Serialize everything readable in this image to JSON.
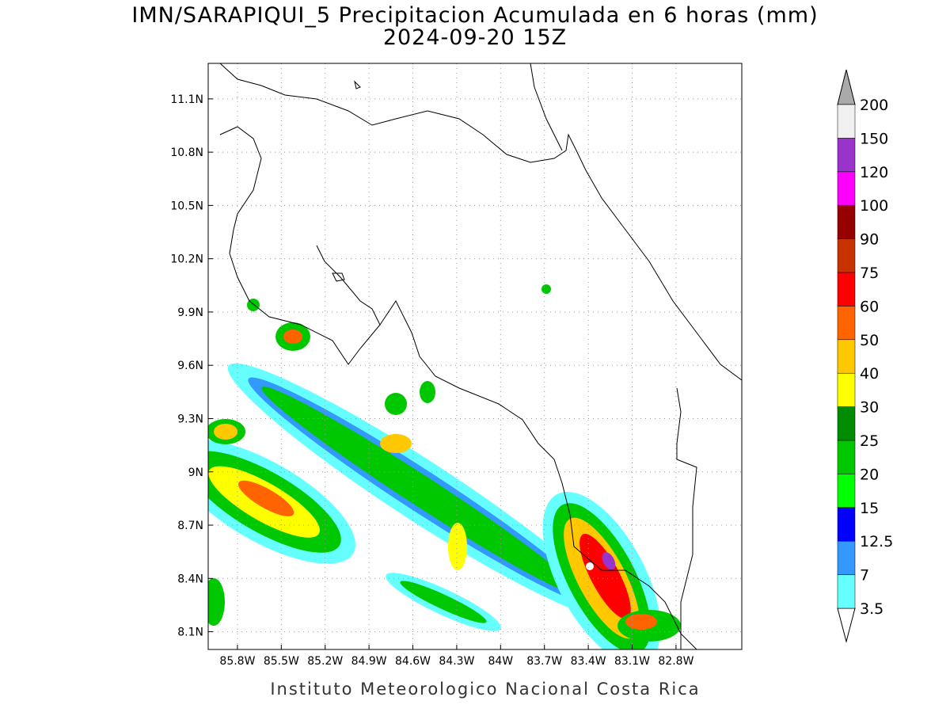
{
  "header": {
    "title": "IMN/SARAPIQUI_5 Precipitacion Acumulada en 6 horas (mm)",
    "subtitle": "2024-09-20 15Z"
  },
  "map": {
    "xlim": [
      -86.0,
      -82.35
    ],
    "ylim": [
      8.0,
      11.3
    ],
    "grid": true,
    "xticks": [
      {
        "value": -85.8,
        "label": "85.8W"
      },
      {
        "value": -85.5,
        "label": "85.5W"
      },
      {
        "value": -85.2,
        "label": "85.2W"
      },
      {
        "value": -84.9,
        "label": "84.9W"
      },
      {
        "value": -84.6,
        "label": "84.6W"
      },
      {
        "value": -84.3,
        "label": "84.3W"
      },
      {
        "value": -84.0,
        "label": "84W"
      },
      {
        "value": -83.7,
        "label": "83.7W"
      },
      {
        "value": -83.4,
        "label": "83.4W"
      },
      {
        "value": -83.1,
        "label": "83.1W"
      },
      {
        "value": -82.8,
        "label": "82.8W"
      }
    ],
    "yticks": [
      {
        "value": 8.1,
        "label": "8.1N"
      },
      {
        "value": 8.4,
        "label": "8.4N"
      },
      {
        "value": 8.7,
        "label": "8.7N"
      },
      {
        "value": 9.0,
        "label": "9N"
      },
      {
        "value": 9.3,
        "label": "9.3N"
      },
      {
        "value": 9.6,
        "label": "9.6N"
      },
      {
        "value": 9.9,
        "label": "9.9N"
      },
      {
        "value": 10.2,
        "label": "10.2N"
      },
      {
        "value": 10.5,
        "label": "10.5N"
      },
      {
        "value": 10.8,
        "label": "10.8N"
      },
      {
        "value": 11.1,
        "label": "11.1N"
      }
    ]
  },
  "colorbar": {
    "levels": [
      3.5,
      7,
      12.5,
      15,
      20,
      25,
      30,
      40,
      50,
      60,
      75,
      90,
      100,
      120,
      150,
      200
    ],
    "colors": [
      "#66ffff",
      "#3399ff",
      "#0000ff",
      "#00ff00",
      "#00c800",
      "#008c00",
      "#ffff00",
      "#ffc800",
      "#ff6400",
      "#ff0000",
      "#c83200",
      "#960000",
      "#ff00ff",
      "#9933cc",
      "#f0f0f0"
    ],
    "under_color": "#ffffff",
    "over_color": "#aaaaaa"
  },
  "footer": {
    "credit": "Instituto Meteorologico Nacional Costa Rica"
  }
}
